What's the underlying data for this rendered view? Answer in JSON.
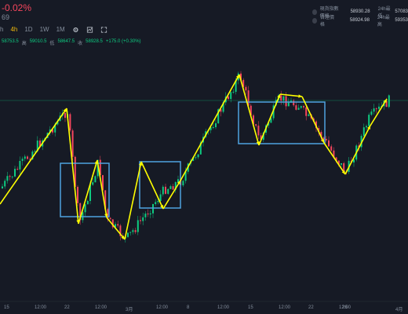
{
  "header": {
    "change_pct": "-0.02%",
    "sub_value": "69"
  },
  "tickers": [
    {
      "label": "現貨指數價格",
      "value": "58930.28",
      "label2": "24h最低",
      "value2": "57083"
    },
    {
      "label": "合理價格",
      "value": "58924.98",
      "label2": "24h最高",
      "value2": "59353"
    }
  ],
  "timeframes": [
    "h",
    "4h",
    "1D",
    "1W",
    "1M"
  ],
  "active_timeframe": "4h",
  "tools": [
    "gear-icon",
    "indicator-icon",
    "expand-icon"
  ],
  "ohlc": {
    "open": "58753.5",
    "high_label": "高",
    "high": "59010.5",
    "low_label": "低",
    "low": "58647.5",
    "close_label": "收",
    "close": "58928.5",
    "change": "+175.0 (+0.30%)"
  },
  "x_axis_labels": [
    "15",
    "12:00",
    "22",
    "12:00",
    "3月",
    "12:00",
    "8",
    "12:00",
    "15",
    "12:00",
    "22",
    "12:00",
    "26",
    "4月"
  ],
  "colors": {
    "up": "#0ecb81",
    "down": "#f6465d",
    "annotation": "#ffff00",
    "box": "#4fa3e0",
    "price_line": "#0ecb81"
  }
}
